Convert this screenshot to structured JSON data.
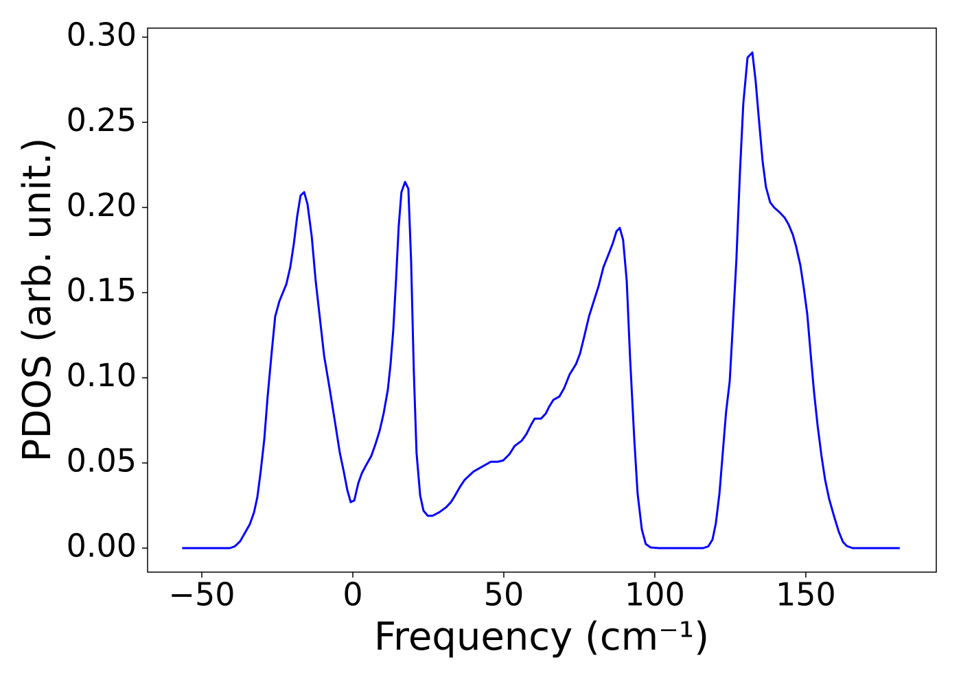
{
  "chart_data": {
    "type": "line",
    "x_label": "Frequency (cm⁻¹)",
    "y_label": "PDOS (arb. unit.)",
    "x": [
      -56.5,
      -40.7,
      -39.1,
      -37.3,
      -35.7,
      -34.1,
      -32.7,
      -31.6,
      -30.5,
      -29.3,
      -28.2,
      -26.8,
      -25.7,
      -24.3,
      -22,
      -20.7,
      -19.5,
      -18.4,
      -17.3,
      -16.1,
      -15,
      -13.6,
      -12.3,
      -10.9,
      -9.5,
      -7.7,
      -5.9,
      -4.3,
      -3,
      -1.8,
      -0.7,
      0.5,
      1.8,
      3,
      4.5,
      6.1,
      7.5,
      8.9,
      10.2,
      11.6,
      12.5,
      13.4,
      14.3,
      15.2,
      16.1,
      17.3,
      18.4,
      19.3,
      20.2,
      21.1,
      22.3,
      23.4,
      24.8,
      26.4,
      28.6,
      30.9,
      32.5,
      33.9,
      35.5,
      37,
      40,
      43,
      45.7,
      48,
      49.8,
      51.8,
      53.6,
      55.9,
      57.5,
      58.9,
      60.2,
      62.3,
      63.9,
      65,
      66.4,
      68.4,
      70,
      71.8,
      73.9,
      75.2,
      76.6,
      78.2,
      79.8,
      81.4,
      83,
      84.8,
      86.1,
      87.3,
      88.4,
      89.5,
      90.7,
      91.8,
      93.2,
      94.3,
      95.7,
      97,
      98.6,
      101.4,
      116,
      117.7,
      119.1,
      120.2,
      121.4,
      122.5,
      123.6,
      124.8,
      125.9,
      127,
      128.2,
      129.3,
      130.7,
      132.3,
      133.4,
      134.5,
      135.7,
      136.8,
      138.2,
      139.5,
      141.4,
      143,
      144.3,
      145.7,
      146.8,
      148.2,
      149.3,
      150.5,
      151.6,
      152.7,
      153.9,
      155.2,
      156.4,
      157.7,
      159.3,
      160.9,
      162.3,
      163.6,
      165.5,
      181.1
    ],
    "series": [
      {
        "color": "#0000ff",
        "values": [
          0,
          0,
          0.001,
          0.004,
          0.009,
          0.014,
          0.021,
          0.03,
          0.045,
          0.064,
          0.089,
          0.116,
          0.136,
          0.145,
          0.155,
          0.165,
          0.179,
          0.195,
          0.207,
          0.209,
          0.202,
          0.183,
          0.157,
          0.135,
          0.113,
          0.094,
          0.074,
          0.056,
          0.045,
          0.034,
          0.027,
          0.028,
          0.038,
          0.044,
          0.049,
          0.054,
          0.061,
          0.069,
          0.079,
          0.093,
          0.108,
          0.128,
          0.157,
          0.189,
          0.209,
          0.215,
          0.211,
          0.169,
          0.104,
          0.056,
          0.031,
          0.022,
          0.019,
          0.019,
          0.021,
          0.024,
          0.027,
          0.031,
          0.036,
          0.04,
          0.045,
          0.048,
          0.0507,
          0.0507,
          0.0515,
          0.055,
          0.06,
          0.063,
          0.067,
          0.072,
          0.076,
          0.076,
          0.079,
          0.083,
          0.087,
          0.089,
          0.094,
          0.102,
          0.108,
          0.114,
          0.124,
          0.136,
          0.145,
          0.154,
          0.165,
          0.173,
          0.179,
          0.186,
          0.188,
          0.181,
          0.157,
          0.112,
          0.064,
          0.032,
          0.011,
          0.0024,
          0.0004,
          0,
          0,
          0.001,
          0.005,
          0.0145,
          0.032,
          0.056,
          0.08,
          0.098,
          0.133,
          0.169,
          0.221,
          0.261,
          0.288,
          0.291,
          0.274,
          0.251,
          0.227,
          0.212,
          0.203,
          0.2,
          0.197,
          0.194,
          0.19,
          0.184,
          0.177,
          0.166,
          0.153,
          0.137,
          0.114,
          0.092,
          0.072,
          0.054,
          0.04,
          0.029,
          0.019,
          0.0097,
          0.0036,
          0.0012,
          0,
          0
        ]
      }
    ],
    "xlim": [
      -67.95,
      193.2
    ],
    "xticks": [
      {
        "value": -50,
        "label": "−50"
      },
      0,
      50,
      100,
      150
    ],
    "ylim": [
      -0.0141,
      0.3053
    ],
    "yticks": [
      {
        "value": 0,
        "label": "0.00"
      },
      {
        "value": 0.05,
        "label": "0.05"
      },
      {
        "value": 0.1,
        "label": "0.10"
      },
      {
        "value": 0.15,
        "label": "0.15"
      },
      {
        "value": 0.2,
        "label": "0.20"
      },
      {
        "value": 0.25,
        "label": "0.25"
      },
      {
        "value": 0.3,
        "label": "0.30"
      }
    ],
    "grid": false
  }
}
